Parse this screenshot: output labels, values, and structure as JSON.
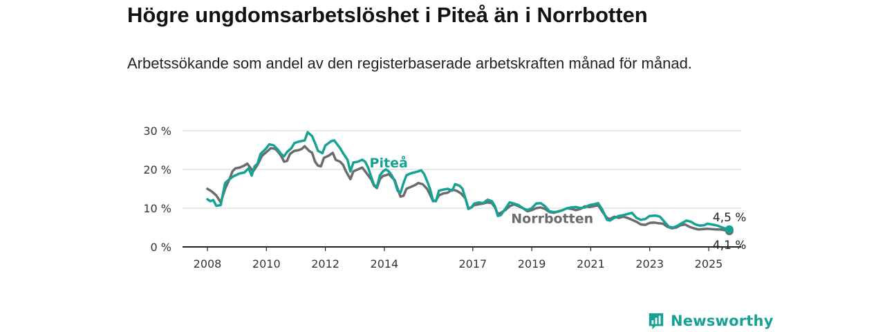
{
  "title": "Högre ungdomsarbetslöshet i Piteå än i Norrbotten",
  "subtitle": "Arbetssökande som andel av den registerbaserade arbetskraften månad för månad.",
  "logo_text": "Newsworthy",
  "chart_data": {
    "type": "line",
    "ylim": [
      0,
      30
    ],
    "xlim": [
      2007.5,
      2026
    ],
    "y_ticks": [
      0,
      10,
      20,
      30
    ],
    "y_tick_labels": [
      "0 %",
      "10 %",
      "20 %",
      "30 %"
    ],
    "x_ticks": [
      2008,
      2010,
      2012,
      2014,
      2017,
      2019,
      2021,
      2023,
      2025
    ],
    "x_tick_labels": [
      "2008",
      "2010",
      "2012",
      "2014",
      "2017",
      "2019",
      "2021",
      "2023",
      "2025"
    ],
    "grid": true,
    "series": [
      {
        "name": "Piteå",
        "color": "#16a293",
        "end_label": "4,5 %",
        "points": [
          [
            2008.0,
            12.3
          ],
          [
            2008.1,
            11.8
          ],
          [
            2008.2,
            12.1
          ],
          [
            2008.3,
            10.6
          ],
          [
            2008.45,
            10.8
          ],
          [
            2008.6,
            16.5
          ],
          [
            2008.75,
            17.5
          ],
          [
            2008.9,
            18.3
          ],
          [
            2009.1,
            19.0
          ],
          [
            2009.25,
            19.2
          ],
          [
            2009.4,
            20.3
          ],
          [
            2009.5,
            18.4
          ],
          [
            2009.6,
            20.8
          ],
          [
            2009.7,
            21.5
          ],
          [
            2009.8,
            24.0
          ],
          [
            2010.0,
            25.5
          ],
          [
            2010.1,
            26.5
          ],
          [
            2010.25,
            26.2
          ],
          [
            2010.4,
            25.0
          ],
          [
            2010.5,
            24.0
          ],
          [
            2010.6,
            23.4
          ],
          [
            2010.7,
            24.5
          ],
          [
            2010.85,
            25.5
          ],
          [
            2010.95,
            26.8
          ],
          [
            2011.1,
            27.2
          ],
          [
            2011.3,
            27.5
          ],
          [
            2011.4,
            29.6
          ],
          [
            2011.55,
            28.6
          ],
          [
            2011.65,
            26.8
          ],
          [
            2011.75,
            24.8
          ],
          [
            2011.9,
            24.2
          ],
          [
            2012.0,
            26.2
          ],
          [
            2012.2,
            27.3
          ],
          [
            2012.3,
            27.5
          ],
          [
            2012.4,
            26.5
          ],
          [
            2012.5,
            25.5
          ],
          [
            2012.6,
            24.2
          ],
          [
            2012.75,
            22.5
          ],
          [
            2012.85,
            19.5
          ],
          [
            2012.95,
            21.8
          ],
          [
            2013.1,
            22.0
          ],
          [
            2013.25,
            22.5
          ],
          [
            2013.35,
            22.0
          ],
          [
            2013.45,
            20.5
          ],
          [
            2013.55,
            18.2
          ],
          [
            2013.65,
            16.0
          ],
          [
            2013.75,
            15.5
          ],
          [
            2013.85,
            18.5
          ],
          [
            2013.95,
            19.5
          ],
          [
            2014.05,
            20.0
          ],
          [
            2014.15,
            19.5
          ],
          [
            2014.25,
            18.5
          ],
          [
            2014.35,
            17.0
          ],
          [
            2014.45,
            14.5
          ],
          [
            2014.55,
            14.0
          ],
          [
            2014.65,
            16.5
          ],
          [
            2014.75,
            18.5
          ],
          [
            2014.9,
            19.0
          ],
          [
            2015.05,
            19.3
          ],
          [
            2015.15,
            19.5
          ],
          [
            2015.25,
            19.8
          ],
          [
            2015.35,
            18.8
          ],
          [
            2015.45,
            17.0
          ],
          [
            2015.55,
            15.0
          ],
          [
            2015.65,
            12.0
          ],
          [
            2015.75,
            11.8
          ],
          [
            2015.85,
            14.5
          ],
          [
            2016.0,
            14.8
          ],
          [
            2016.15,
            15.0
          ],
          [
            2016.3,
            14.5
          ],
          [
            2016.4,
            16.2
          ],
          [
            2016.55,
            15.8
          ],
          [
            2016.65,
            15.0
          ],
          [
            2016.75,
            12.5
          ],
          [
            2016.85,
            9.8
          ],
          [
            2016.95,
            10.2
          ],
          [
            2017.05,
            11.2
          ],
          [
            2017.2,
            11.5
          ],
          [
            2017.35,
            11.3
          ],
          [
            2017.5,
            12.2
          ],
          [
            2017.65,
            11.8
          ],
          [
            2017.75,
            10.5
          ],
          [
            2017.85,
            8.0
          ],
          [
            2017.95,
            8.2
          ],
          [
            2018.1,
            9.8
          ],
          [
            2018.25,
            11.5
          ],
          [
            2018.4,
            11.2
          ],
          [
            2018.55,
            10.8
          ],
          [
            2018.7,
            10.0
          ],
          [
            2018.85,
            9.5
          ],
          [
            2019.0,
            10.0
          ],
          [
            2019.15,
            11.2
          ],
          [
            2019.3,
            11.3
          ],
          [
            2019.45,
            10.5
          ],
          [
            2019.6,
            9.2
          ],
          [
            2019.75,
            9.0
          ],
          [
            2019.9,
            9.1
          ],
          [
            2020.05,
            9.5
          ],
          [
            2020.2,
            10.0
          ],
          [
            2020.35,
            10.2
          ],
          [
            2020.5,
            10.3
          ],
          [
            2020.65,
            10.0
          ],
          [
            2020.8,
            10.2
          ],
          [
            2020.95,
            10.8
          ],
          [
            2021.1,
            11.0
          ],
          [
            2021.25,
            11.3
          ],
          [
            2021.4,
            9.5
          ],
          [
            2021.55,
            7.0
          ],
          [
            2021.65,
            6.8
          ],
          [
            2021.8,
            7.5
          ],
          [
            2021.95,
            8.0
          ],
          [
            2022.1,
            8.2
          ],
          [
            2022.25,
            8.5
          ],
          [
            2022.4,
            8.8
          ],
          [
            2022.55,
            7.5
          ],
          [
            2022.7,
            7.0
          ],
          [
            2022.85,
            7.2
          ],
          [
            2023.0,
            8.0
          ],
          [
            2023.2,
            8.1
          ],
          [
            2023.35,
            7.8
          ],
          [
            2023.5,
            6.5
          ],
          [
            2023.65,
            5.2
          ],
          [
            2023.8,
            5.0
          ],
          [
            2023.95,
            5.5
          ],
          [
            2024.1,
            6.2
          ],
          [
            2024.25,
            6.8
          ],
          [
            2024.4,
            6.5
          ],
          [
            2024.55,
            5.8
          ],
          [
            2024.7,
            5.5
          ],
          [
            2024.85,
            5.6
          ],
          [
            2024.95,
            6.0
          ],
          [
            2025.1,
            5.8
          ],
          [
            2025.3,
            5.5
          ],
          [
            2025.4,
            5.2
          ],
          [
            2025.5,
            4.9
          ],
          [
            2025.6,
            4.7
          ],
          [
            2025.7,
            4.5
          ]
        ]
      },
      {
        "name": "Norrbotten",
        "color": "#6b6b6d",
        "end_label": "4,1 %",
        "points": [
          [
            2008.0,
            15.0
          ],
          [
            2008.15,
            14.3
          ],
          [
            2008.3,
            13.3
          ],
          [
            2008.45,
            11.5
          ],
          [
            2008.6,
            15.0
          ],
          [
            2008.75,
            17.5
          ],
          [
            2008.85,
            19.5
          ],
          [
            2008.95,
            20.3
          ],
          [
            2009.1,
            20.5
          ],
          [
            2009.25,
            21.0
          ],
          [
            2009.35,
            21.5
          ],
          [
            2009.45,
            20.5
          ],
          [
            2009.55,
            19.5
          ],
          [
            2009.7,
            21.2
          ],
          [
            2009.85,
            23.5
          ],
          [
            2010.0,
            24.5
          ],
          [
            2010.15,
            25.5
          ],
          [
            2010.3,
            25.3
          ],
          [
            2010.4,
            24.5
          ],
          [
            2010.5,
            23.5
          ],
          [
            2010.6,
            22.0
          ],
          [
            2010.7,
            22.2
          ],
          [
            2010.8,
            24.0
          ],
          [
            2010.95,
            24.8
          ],
          [
            2011.1,
            25.0
          ],
          [
            2011.2,
            25.3
          ],
          [
            2011.3,
            26.0
          ],
          [
            2011.45,
            24.8
          ],
          [
            2011.55,
            24.3
          ],
          [
            2011.65,
            22.0
          ],
          [
            2011.75,
            21.0
          ],
          [
            2011.85,
            20.8
          ],
          [
            2011.95,
            23.0
          ],
          [
            2012.1,
            23.5
          ],
          [
            2012.25,
            24.3
          ],
          [
            2012.35,
            22.5
          ],
          [
            2012.5,
            22.0
          ],
          [
            2012.6,
            21.2
          ],
          [
            2012.7,
            19.5
          ],
          [
            2012.85,
            17.5
          ],
          [
            2012.95,
            19.5
          ],
          [
            2013.1,
            20.0
          ],
          [
            2013.25,
            20.5
          ],
          [
            2013.35,
            19.5
          ],
          [
            2013.45,
            18.5
          ],
          [
            2013.55,
            17.5
          ],
          [
            2013.65,
            15.8
          ],
          [
            2013.75,
            15.2
          ],
          [
            2013.85,
            17.5
          ],
          [
            2013.95,
            18.3
          ],
          [
            2014.05,
            18.5
          ],
          [
            2014.15,
            18.8
          ],
          [
            2014.25,
            18.0
          ],
          [
            2014.35,
            17.3
          ],
          [
            2014.45,
            15.0
          ],
          [
            2014.55,
            13.0
          ],
          [
            2014.65,
            13.2
          ],
          [
            2014.75,
            15.0
          ],
          [
            2014.9,
            15.5
          ],
          [
            2015.05,
            16.0
          ],
          [
            2015.15,
            16.5
          ],
          [
            2015.3,
            16.2
          ],
          [
            2015.45,
            15.0
          ],
          [
            2015.55,
            13.5
          ],
          [
            2015.65,
            11.8
          ],
          [
            2015.75,
            12.0
          ],
          [
            2015.85,
            13.3
          ],
          [
            2016.0,
            13.8
          ],
          [
            2016.15,
            14.0
          ],
          [
            2016.3,
            14.8
          ],
          [
            2016.45,
            14.5
          ],
          [
            2016.6,
            13.8
          ],
          [
            2016.75,
            12.5
          ],
          [
            2016.85,
            10.0
          ],
          [
            2016.95,
            10.2
          ],
          [
            2017.05,
            10.8
          ],
          [
            2017.2,
            11.0
          ],
          [
            2017.35,
            11.2
          ],
          [
            2017.5,
            11.5
          ],
          [
            2017.65,
            11.3
          ],
          [
            2017.75,
            10.2
          ],
          [
            2017.85,
            8.5
          ],
          [
            2017.95,
            8.8
          ],
          [
            2018.1,
            9.5
          ],
          [
            2018.25,
            10.5
          ],
          [
            2018.4,
            11.0
          ],
          [
            2018.55,
            10.5
          ],
          [
            2018.7,
            10.0
          ],
          [
            2018.85,
            9.2
          ],
          [
            2019.0,
            9.5
          ],
          [
            2019.15,
            10.0
          ],
          [
            2019.3,
            10.2
          ],
          [
            2019.45,
            9.8
          ],
          [
            2019.6,
            9.0
          ],
          [
            2019.75,
            8.8
          ],
          [
            2019.9,
            9.2
          ],
          [
            2020.05,
            9.5
          ],
          [
            2020.2,
            10.0
          ],
          [
            2020.35,
            9.8
          ],
          [
            2020.5,
            9.5
          ],
          [
            2020.65,
            9.8
          ],
          [
            2020.8,
            10.5
          ],
          [
            2020.95,
            10.3
          ],
          [
            2021.1,
            10.5
          ],
          [
            2021.25,
            10.8
          ],
          [
            2021.4,
            9.0
          ],
          [
            2021.55,
            7.5
          ],
          [
            2021.65,
            7.2
          ],
          [
            2021.8,
            7.8
          ],
          [
            2021.95,
            7.5
          ],
          [
            2022.1,
            7.8
          ],
          [
            2022.25,
            7.5
          ],
          [
            2022.4,
            7.0
          ],
          [
            2022.55,
            6.5
          ],
          [
            2022.7,
            5.8
          ],
          [
            2022.85,
            5.7
          ],
          [
            2023.0,
            6.2
          ],
          [
            2023.15,
            6.3
          ],
          [
            2023.3,
            6.1
          ],
          [
            2023.45,
            6.0
          ],
          [
            2023.6,
            5.2
          ],
          [
            2023.75,
            4.8
          ],
          [
            2023.9,
            5.0
          ],
          [
            2024.05,
            5.6
          ],
          [
            2024.2,
            5.8
          ],
          [
            2024.35,
            5.2
          ],
          [
            2024.5,
            4.8
          ],
          [
            2024.65,
            4.5
          ],
          [
            2024.8,
            4.6
          ],
          [
            2024.95,
            4.7
          ],
          [
            2025.1,
            4.6
          ],
          [
            2025.25,
            4.5
          ],
          [
            2025.4,
            4.5
          ],
          [
            2025.55,
            4.3
          ],
          [
            2025.7,
            4.1
          ]
        ]
      }
    ]
  }
}
